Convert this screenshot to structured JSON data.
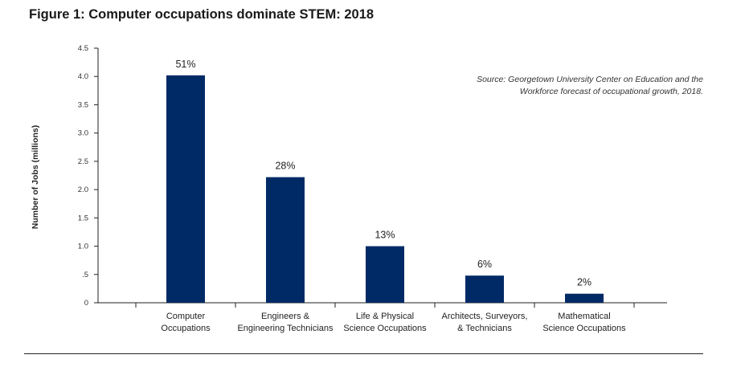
{
  "title": "Figure 1: Computer occupations dominate STEM: 2018",
  "source": "Source: Georgetown University Center on Education and the Workforce forecast of occupational growth, 2018.",
  "chart_data": {
    "type": "bar",
    "title": "Figure 1: Computer occupations dominate STEM: 2018",
    "xlabel": "",
    "ylabel": "Number of Jobs (millions)",
    "ylim": [
      0,
      4.5
    ],
    "yticks": [
      0,
      0.5,
      1.0,
      1.5,
      2.0,
      2.5,
      3.0,
      3.5,
      4.0,
      4.5
    ],
    "ytick_labels": [
      "0",
      ".5",
      "1.0",
      "1.5",
      "2.0",
      "2.5",
      "3.0",
      "3.5",
      "4.0",
      "4.5"
    ],
    "categories": [
      [
        "Computer",
        "Occupations"
      ],
      [
        "Engineers &",
        "Engineering Technicians"
      ],
      [
        "Life & Physical",
        "Science Occupations"
      ],
      [
        "Architects, Surveyors,",
        "& Technicians"
      ],
      [
        "Mathematical",
        "Science Occupations"
      ]
    ],
    "values": [
      4.02,
      2.22,
      1.0,
      0.48,
      0.16
    ],
    "data_labels": [
      "51%",
      "28%",
      "13%",
      "6%",
      "2%"
    ],
    "bar_color": "#002a66",
    "grid": false,
    "legend": "none"
  }
}
